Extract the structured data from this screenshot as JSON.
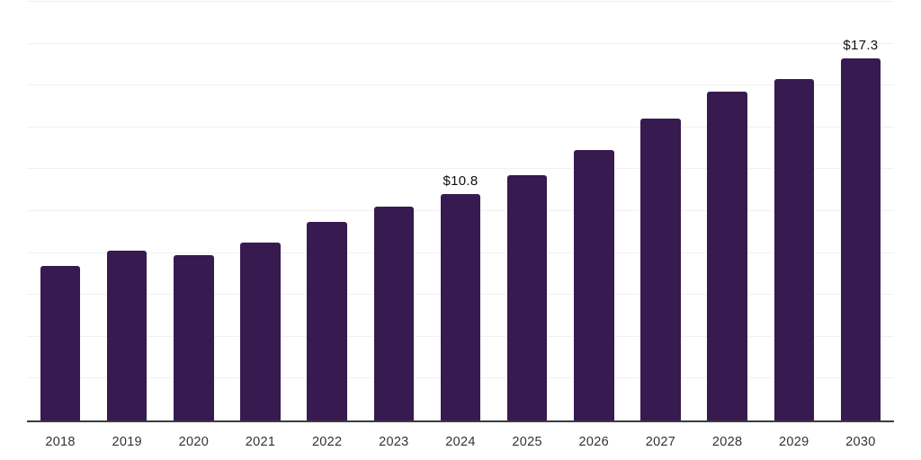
{
  "chart_data": {
    "type": "bar",
    "title": "",
    "xlabel": "",
    "ylabel": "",
    "categories": [
      "2018",
      "2019",
      "2020",
      "2021",
      "2022",
      "2023",
      "2024",
      "2025",
      "2026",
      "2027",
      "2028",
      "2029",
      "2030"
    ],
    "values": [
      7.4,
      8.1,
      7.9,
      8.5,
      9.5,
      10.2,
      10.8,
      11.7,
      12.9,
      14.4,
      15.7,
      16.3,
      17.3
    ],
    "value_labels": {
      "2024": "$10.8",
      "2030": "$17.3"
    },
    "ylim": [
      0,
      20
    ],
    "grid_step": 2,
    "grid_on": true,
    "legend": false,
    "colors": {
      "bar": "#371a50",
      "gridline": "#f1f1f1",
      "axis_line": "#3c3c3c",
      "tick_label": "#333333",
      "value_label": "#0f0f0f",
      "background": "#ffffff"
    }
  }
}
